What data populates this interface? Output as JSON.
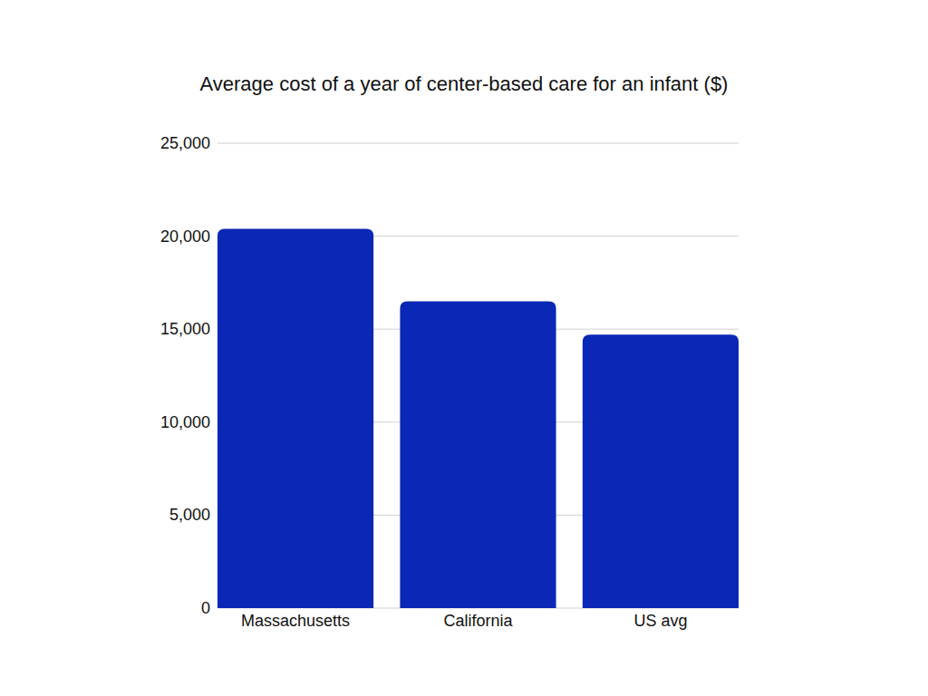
{
  "chart_data": {
    "type": "bar",
    "title": "Average cost of a year of center-based care for an infant ($)",
    "categories": [
      "Massachusetts",
      "California",
      "US avg"
    ],
    "values": [
      20400,
      16500,
      14700
    ],
    "color": "#0a27b5",
    "ylim": [
      0,
      25000
    ],
    "yticks": [
      0,
      {
        "value": 5000,
        "label": "5,000"
      },
      {
        "value": 10000,
        "label": "10,000"
      },
      {
        "value": 15000,
        "label": "15,000"
      },
      {
        "value": 20000,
        "label": "20,000"
      },
      {
        "value": 25000,
        "label": "25,000"
      }
    ],
    "grid": true
  }
}
